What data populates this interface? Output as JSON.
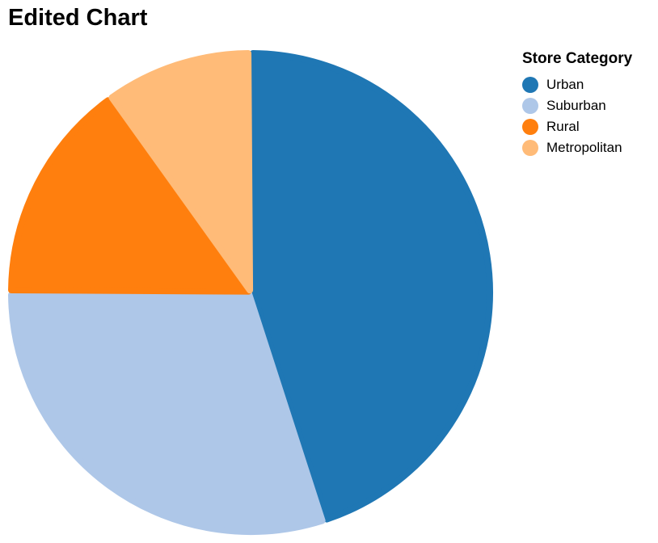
{
  "chart_data": {
    "type": "pie",
    "title": "Edited Chart",
    "legend_title": "Store Category",
    "legend_position": "right",
    "categories": [
      "Urban",
      "Suburban",
      "Rural",
      "Metropolitan"
    ],
    "values": [
      45,
      30,
      15,
      10
    ],
    "colors": [
      "#1f77b4",
      "#aec7e8",
      "#ff7f0e",
      "#ffbb78"
    ]
  }
}
